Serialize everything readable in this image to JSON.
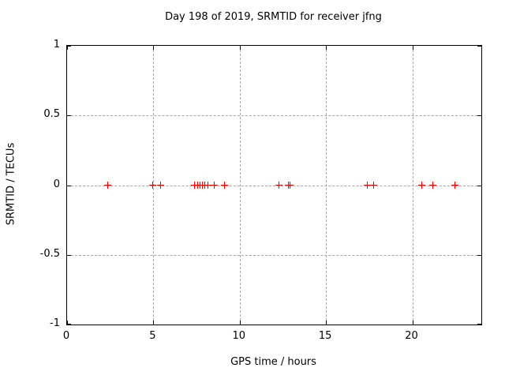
{
  "title": "Day 198 of 2019, SRMTID for receiver jfng",
  "colors": {
    "marker": "#ff0000",
    "grid": "#a6a6a6",
    "axis": "#000000",
    "background": "#ffffff",
    "text": "#000000"
  },
  "chart_data": {
    "type": "scatter",
    "title": "Day 198 of 2019, SRMTID for receiver jfng",
    "xlabel": "GPS time / hours",
    "ylabel": "SRMTID / TECUs",
    "xlim": [
      0,
      24
    ],
    "ylim": [
      -1,
      1
    ],
    "x_ticks": [
      0,
      5,
      10,
      15,
      20
    ],
    "x_tick_labels": [
      "0",
      "5",
      "10",
      "15",
      "20"
    ],
    "y_ticks": [
      1,
      0.5,
      0,
      -0.5,
      -1
    ],
    "y_tick_labels": [
      "1",
      "0.5",
      "0",
      "-0.5",
      "-1"
    ],
    "x_gridlines": [
      5,
      10,
      15,
      20
    ],
    "y_gridlines": [
      0.5,
      0,
      -0.5
    ],
    "grid": true,
    "legend_position": "none",
    "marker_style": "plus",
    "marker_color": "#ff0000",
    "series": [
      {
        "name": "SRMTID",
        "x": [
          2.36,
          4.94,
          5.4,
          7.37,
          7.55,
          7.69,
          7.83,
          7.96,
          8.15,
          8.51,
          9.1,
          12.26,
          12.81,
          12.91,
          17.4,
          17.75,
          20.56,
          21.19,
          22.49
        ],
        "y": [
          0,
          0,
          0,
          0,
          0,
          0,
          0,
          0,
          0,
          0,
          0,
          0,
          0,
          0,
          0,
          0,
          0,
          0,
          0
        ]
      }
    ]
  }
}
